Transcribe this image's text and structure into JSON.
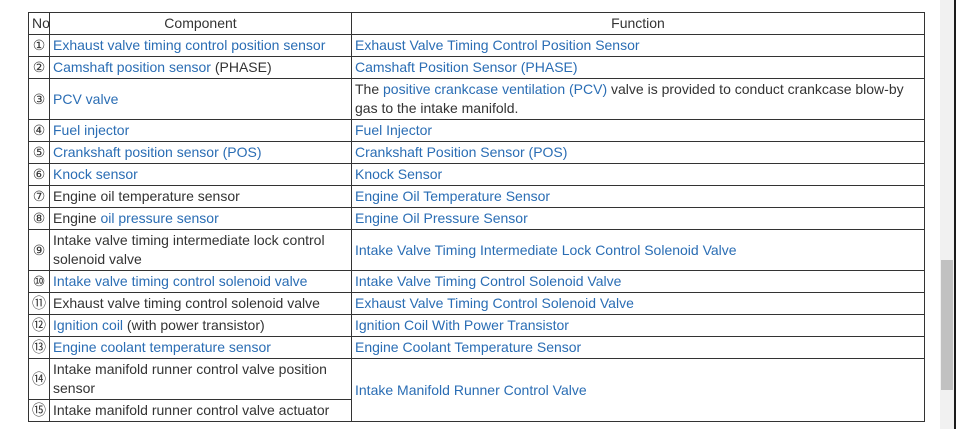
{
  "colors": {
    "link_blue": "#2a6db4",
    "text_black": "#333333",
    "table_border": "#333333",
    "scrollbar_track": "#f1f1f1",
    "scrollbar_thumb": "#c1c1c1"
  },
  "table": {
    "headers": {
      "no": "No.",
      "component": "Component",
      "function": "Function"
    },
    "rows": [
      {
        "num": "①",
        "component": [
          {
            "t": "Exhaust valve timing control position sensor",
            "link": true
          }
        ],
        "function": [
          {
            "t": "Exhaust Valve Timing Control Position Sensor",
            "link": true
          }
        ]
      },
      {
        "num": "②",
        "component": [
          {
            "t": "Camshaft position sensor",
            "link": true
          },
          {
            "t": " (PHASE)",
            "link": false
          }
        ],
        "function": [
          {
            "t": "Camshaft Position Sensor (PHASE)",
            "link": true
          }
        ]
      },
      {
        "num": "③",
        "component": [
          {
            "t": "PCV valve",
            "link": true
          }
        ],
        "function": [
          {
            "t": "The ",
            "link": false
          },
          {
            "t": "positive crankcase ventilation (PCV)",
            "link": true
          },
          {
            "t": " valve is provided to conduct crankcase blow-by gas to the intake manifold.",
            "link": false
          }
        ]
      },
      {
        "num": "④",
        "component": [
          {
            "t": "Fuel injector",
            "link": true
          }
        ],
        "function": [
          {
            "t": "Fuel Injector",
            "link": true
          }
        ]
      },
      {
        "num": "⑤",
        "component": [
          {
            "t": "Crankshaft position sensor (POS)",
            "link": true
          }
        ],
        "function": [
          {
            "t": "Crankshaft Position Sensor (POS)",
            "link": true
          }
        ]
      },
      {
        "num": "⑥",
        "component": [
          {
            "t": "Knock sensor",
            "link": true
          }
        ],
        "function": [
          {
            "t": "Knock Sensor",
            "link": true
          }
        ]
      },
      {
        "num": "⑦",
        "component": [
          {
            "t": "Engine oil temperature sensor",
            "link": false
          }
        ],
        "function": [
          {
            "t": "Engine Oil Temperature Sensor",
            "link": true
          }
        ]
      },
      {
        "num": "⑧",
        "component": [
          {
            "t": "Engine ",
            "link": false
          },
          {
            "t": "oil pressure sensor",
            "link": true
          }
        ],
        "function": [
          {
            "t": "Engine Oil Pressure Sensor",
            "link": true
          }
        ]
      },
      {
        "num": "⑨",
        "component": [
          {
            "t": "Intake valve timing intermediate lock control solenoid valve",
            "link": false
          }
        ],
        "function": [
          {
            "t": "Intake Valve Timing Intermediate Lock Control Solenoid Valve",
            "link": true
          }
        ]
      },
      {
        "num": "⑩",
        "component": [
          {
            "t": "Intake valve timing control solenoid valve",
            "link": true
          }
        ],
        "function": [
          {
            "t": "Intake Valve Timing Control Solenoid Valve",
            "link": true
          }
        ]
      },
      {
        "num": "⑪",
        "component": [
          {
            "t": "Exhaust valve timing control solenoid valve",
            "link": false
          }
        ],
        "function": [
          {
            "t": "Exhaust Valve Timing Control Solenoid Valve",
            "link": true
          }
        ]
      },
      {
        "num": "⑫",
        "component": [
          {
            "t": "Ignition coil",
            "link": true
          },
          {
            "t": " (with power transistor)",
            "link": false
          }
        ],
        "function": [
          {
            "t": "Ignition Coil With Power Transistor",
            "link": true
          }
        ]
      },
      {
        "num": "⑬",
        "component": [
          {
            "t": "Engine coolant temperature sensor",
            "link": true
          }
        ],
        "function": [
          {
            "t": "Engine Coolant Temperature Sensor",
            "link": true
          }
        ]
      },
      {
        "num": "⑭",
        "component": [
          {
            "t": "Intake manifold runner control valve position sensor",
            "link": false
          }
        ],
        "function": [
          {
            "t": "Intake Manifold Runner Control Valve",
            "link": true
          }
        ],
        "function_rowspan": 2
      },
      {
        "num": "⑮",
        "component": [
          {
            "t": "Intake manifold runner control valve actuator",
            "link": false
          }
        ],
        "function": null
      }
    ]
  }
}
